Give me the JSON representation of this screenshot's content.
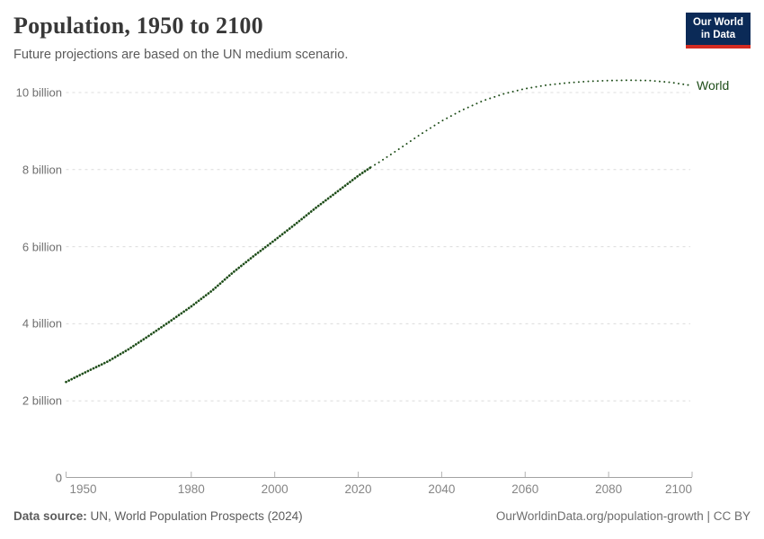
{
  "header": {
    "title": "Population, 1950 to 2100",
    "subtitle": "Future projections are based on the UN medium scenario."
  },
  "logo": {
    "line1": "Our World",
    "line2": "in Data",
    "bg_color": "#0b2a57",
    "accent_color": "#d42b21"
  },
  "footer": {
    "source_label": "Data source:",
    "source_text": " UN, World Population Prospects (2024)",
    "link_text": "OurWorldinData.org/population-growth | CC BY"
  },
  "chart_data": {
    "type": "line",
    "title": "Population, 1950 to 2100",
    "subtitle": "Future projections are based on the UN medium scenario.",
    "xlabel": "",
    "ylabel": "",
    "xlim": [
      1950,
      2100
    ],
    "ylim": [
      0,
      10.7
    ],
    "grid": "horizontal-dashed",
    "legend_position": "end-of-line-label",
    "axis_color": "#a3a3a3",
    "gridline_color": "#dcdcdc",
    "yticks": [
      {
        "value": 0,
        "label": "0"
      },
      {
        "value": 2,
        "label": "2 billion"
      },
      {
        "value": 4,
        "label": "4 billion"
      },
      {
        "value": 6,
        "label": "6 billion"
      },
      {
        "value": 8,
        "label": "8 billion"
      },
      {
        "value": 10,
        "label": "10 billion"
      }
    ],
    "xticks": [
      1950,
      1980,
      2000,
      2020,
      2040,
      2060,
      2080,
      2100
    ],
    "series": [
      {
        "name": "World",
        "color": "#1e4d19",
        "style": "dotted",
        "projection_from": 2023,
        "points": [
          [
            1950,
            2.49
          ],
          [
            1955,
            2.76
          ],
          [
            1960,
            3.02
          ],
          [
            1965,
            3.34
          ],
          [
            1970,
            3.7
          ],
          [
            1975,
            4.07
          ],
          [
            1980,
            4.45
          ],
          [
            1985,
            4.86
          ],
          [
            1990,
            5.33
          ],
          [
            1995,
            5.76
          ],
          [
            2000,
            6.17
          ],
          [
            2005,
            6.59
          ],
          [
            2010,
            7.02
          ],
          [
            2015,
            7.43
          ],
          [
            2020,
            7.84
          ],
          [
            2023,
            8.06
          ],
          [
            2025,
            8.19
          ],
          [
            2030,
            8.55
          ],
          [
            2035,
            8.92
          ],
          [
            2040,
            9.26
          ],
          [
            2045,
            9.55
          ],
          [
            2050,
            9.79
          ],
          [
            2055,
            9.97
          ],
          [
            2060,
            10.1
          ],
          [
            2065,
            10.19
          ],
          [
            2070,
            10.25
          ],
          [
            2075,
            10.29
          ],
          [
            2080,
            10.31
          ],
          [
            2085,
            10.32
          ],
          [
            2090,
            10.31
          ],
          [
            2095,
            10.26
          ],
          [
            2100,
            10.18
          ]
        ]
      }
    ]
  }
}
